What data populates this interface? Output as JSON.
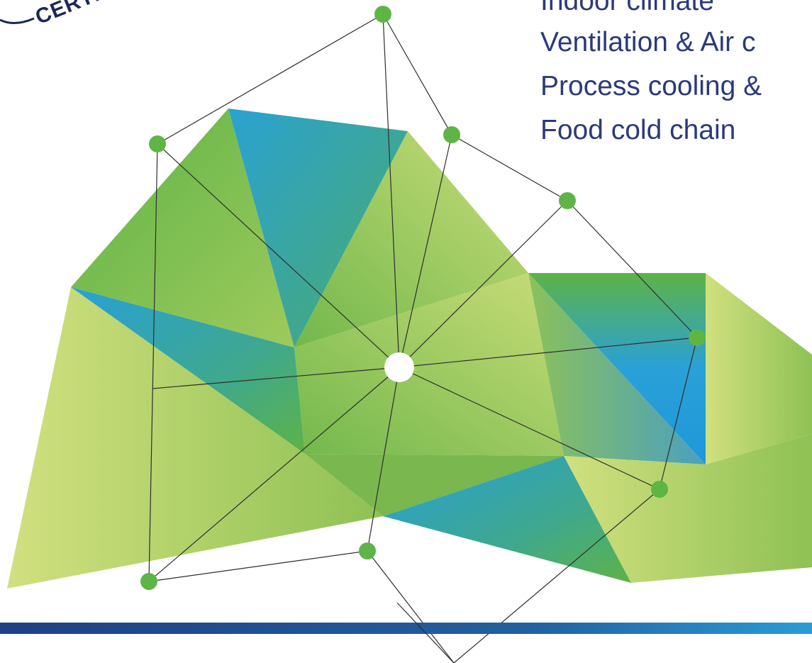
{
  "list": {
    "items": [
      {
        "label": "Indoor climate"
      },
      {
        "label": "Ventilation & Air c"
      },
      {
        "label": "Process cooling &"
      },
      {
        "label": "Food cold chain"
      }
    ]
  },
  "seal": {
    "text": "CERTIFI"
  },
  "colors": {
    "text": "#2b3a7a",
    "green_dark": "#5db347",
    "green_light": "#c8dc7a",
    "teal": "#3aa0b6",
    "blue": "#1f9ad6",
    "node": "#5eb546",
    "bar_start": "#1f3f87",
    "bar_end": "#2a9bd6"
  },
  "icons": [
    "network-node-icon",
    "network-hub-icon",
    "certified-seal-icon"
  ]
}
